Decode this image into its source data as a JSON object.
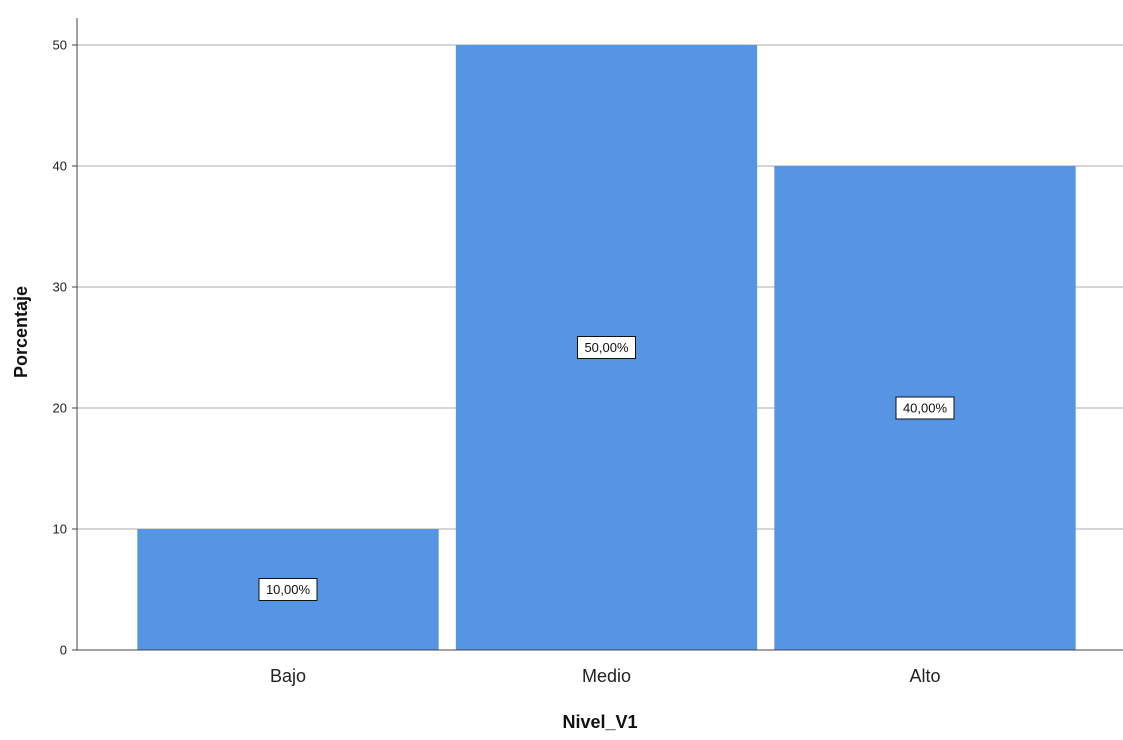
{
  "chart_data": {
    "type": "bar",
    "categories": [
      "Bajo",
      "Medio",
      "Alto"
    ],
    "values": [
      10,
      50,
      40
    ],
    "data_labels": [
      "10,00%",
      "50,00%",
      "40,00%"
    ],
    "title": "",
    "xlabel": "Nivel_V1",
    "ylabel": "Porcentaje",
    "ylim": [
      0,
      50
    ],
    "yticks": [
      0,
      10,
      20,
      30,
      40,
      50
    ],
    "grid": true,
    "legend": "none",
    "colors": {
      "bar": "#5595E4",
      "grid": "#C8C8C8",
      "axis": "#444444"
    }
  }
}
